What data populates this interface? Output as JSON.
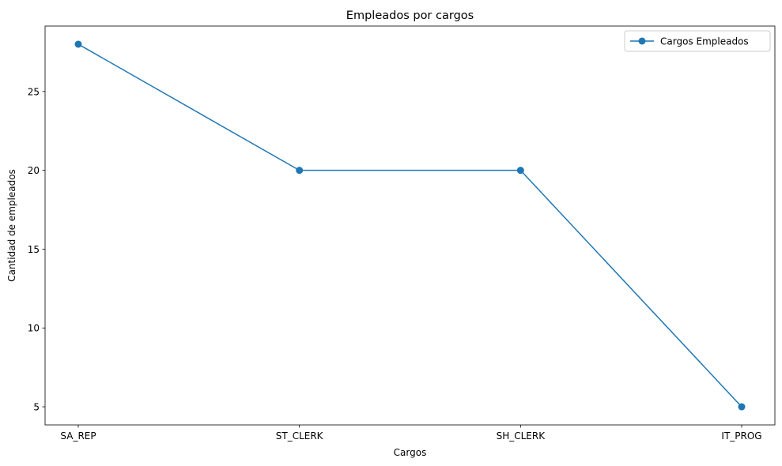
{
  "chart_data": {
    "type": "line",
    "title": "Empleados por cargos",
    "xlabel": "Cargos",
    "ylabel": "Cantidad de empleados",
    "categories": [
      "SA_REP",
      "ST_CLERK",
      "SH_CLERK",
      "IT_PROG"
    ],
    "series": [
      {
        "name": "Cargos Empleados",
        "values": [
          28,
          20,
          20,
          5
        ],
        "color": "#1f77b4",
        "marker": "circle"
      }
    ],
    "ylim": [
      3.85,
      29.15
    ],
    "yticks": [
      5,
      10,
      15,
      20,
      25
    ],
    "grid": false,
    "legend_position": "top-right"
  }
}
